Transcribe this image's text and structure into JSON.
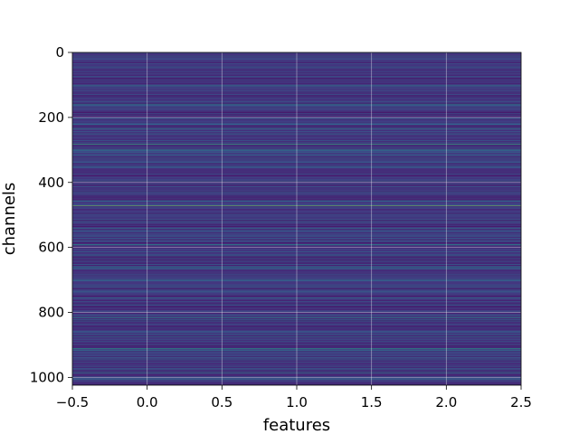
{
  "chart_data": {
    "type": "heatmap",
    "title": "",
    "xlabel": "features",
    "ylabel": "channels",
    "xlim": [
      -0.5,
      2.5
    ],
    "ylim": [
      1024,
      0
    ],
    "y_inverted": true,
    "x_ticks": [
      {
        "value": -0.5,
        "label": "−0.5"
      },
      {
        "value": 0.0,
        "label": "0.0"
      },
      {
        "value": 0.5,
        "label": "0.5"
      },
      {
        "value": 1.0,
        "label": "1.0"
      },
      {
        "value": 1.5,
        "label": "1.5"
      },
      {
        "value": 2.0,
        "label": "2.0"
      },
      {
        "value": 2.5,
        "label": "2.5"
      }
    ],
    "y_ticks": [
      {
        "value": 0,
        "label": "0"
      },
      {
        "value": 200,
        "label": "200"
      },
      {
        "value": 400,
        "label": "400"
      },
      {
        "value": 600,
        "label": "600"
      },
      {
        "value": 800,
        "label": "800"
      },
      {
        "value": 1000,
        "label": "1000"
      }
    ],
    "n_rows": 1024,
    "n_cols": 3,
    "grid": true,
    "colormap": "viridis",
    "highlight_rows": [
      {
        "channel": 100,
        "level": 0.55
      },
      {
        "channel": 160,
        "level": 0.5
      },
      {
        "channel": 235,
        "level": 0.55
      },
      {
        "channel": 250,
        "level": 0.5
      },
      {
        "channel": 282,
        "level": 0.7
      },
      {
        "channel": 300,
        "level": 0.55
      },
      {
        "channel": 325,
        "level": 0.5
      },
      {
        "channel": 395,
        "level": 0.5
      },
      {
        "channel": 472,
        "level": 0.85
      },
      {
        "channel": 540,
        "level": 0.5
      },
      {
        "channel": 590,
        "level": 0.55
      },
      {
        "channel": 660,
        "level": 0.5
      },
      {
        "channel": 700,
        "level": 0.5
      },
      {
        "channel": 755,
        "level": 0.55
      },
      {
        "channel": 815,
        "level": 0.6
      },
      {
        "channel": 875,
        "level": 0.5
      },
      {
        "channel": 910,
        "level": 0.6
      },
      {
        "channel": 915,
        "level": 0.55
      },
      {
        "channel": 985,
        "level": 0.55
      },
      {
        "channel": 1005,
        "level": 0.5
      }
    ]
  }
}
